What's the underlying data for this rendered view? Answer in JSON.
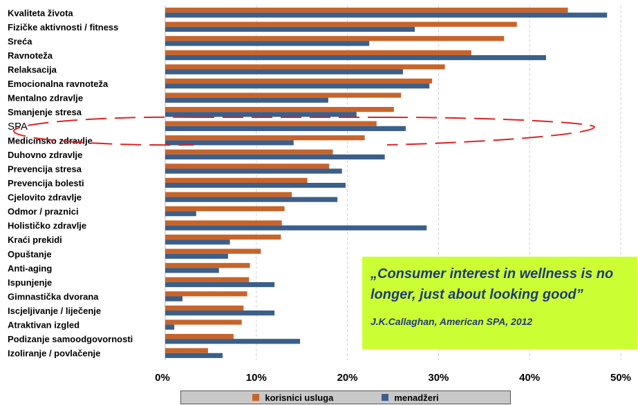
{
  "chart_data": {
    "type": "bar",
    "orientation": "horizontal",
    "categories": [
      "Kvaliteta života",
      "Fizičke aktivnosti / fitness",
      "Sreća",
      "Ravnoteža",
      "Relaksacija",
      "Emocionalna ravnoteža",
      "Mentalno zdravlje",
      "Smanjenje stresa",
      "SPA",
      "Medicinsko zdravlje",
      "Duhovno zdravlje",
      "Prevencija stresa",
      "Prevencija bolesti",
      "Cjelovito zdravlje",
      "Odmor  / praznici",
      "Holističko zdravlje",
      "Kraći prekidi",
      "Opuštanje",
      "Anti-aging",
      "Ispunjenje",
      "Gimnastička dvorana",
      "Iscjeljivanje / liječenje",
      "Atraktivan izgled",
      "Podizanje samoodgovornosti",
      "Izoliranje / povlačenje"
    ],
    "series": [
      {
        "name": "korisnici usluga",
        "color": "#c8642a",
        "values": [
          44.2,
          38.6,
          37.2,
          33.6,
          30.7,
          29.3,
          25.9,
          25.1,
          23.2,
          21.9,
          18.4,
          18.0,
          15.6,
          13.9,
          13.1,
          12.8,
          12.7,
          10.5,
          9.3,
          9.2,
          9.0,
          8.6,
          8.4,
          7.5,
          4.7
        ]
      },
      {
        "name": "menadžeri",
        "color": "#3a5f8a",
        "values": [
          48.5,
          27.4,
          22.4,
          41.8,
          26.1,
          29.0,
          17.9,
          21.0,
          26.4,
          14.1,
          24.1,
          19.4,
          19.8,
          18.9,
          3.4,
          28.7,
          7.1,
          6.9,
          5.9,
          12.0,
          1.9,
          12.0,
          1.0,
          14.8,
          6.3
        ]
      }
    ],
    "xticks": [
      "0%",
      "10%",
      "20%",
      "30%",
      "40%",
      "50%"
    ],
    "xlim": [
      0,
      50
    ],
    "grid": true,
    "legend": "bottom"
  },
  "quote": {
    "text": "„Consumer interest in wellness is no longer, just about looking good”",
    "source": "J.K.Callaghan,  American SPA, 2012"
  }
}
